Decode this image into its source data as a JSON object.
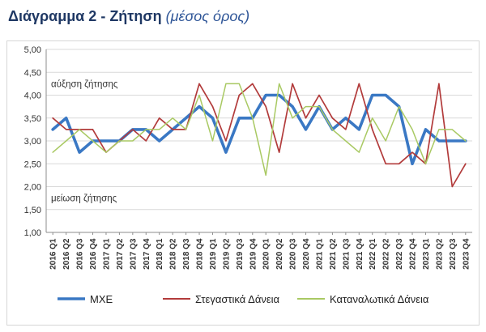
{
  "title": "Διάγραμμα 2 - Ζήτηση",
  "title_note": "(μέσος όρος)",
  "chart_data": {
    "type": "line",
    "title": "Διάγραμμα 2 - Ζήτηση (μέσος όρος)",
    "xlabel": "",
    "ylabel": "",
    "ylim": [
      1.0,
      5.0
    ],
    "yticks": [
      "1,00",
      "1,50",
      "2,00",
      "2,50",
      "3,00",
      "3,50",
      "4,00",
      "4,50",
      "5,00"
    ],
    "grid": true,
    "legend_position": "bottom",
    "categories": [
      "2016 Q1",
      "2016 Q2",
      "2016 Q3",
      "2016 Q4",
      "2017 Q1",
      "2017 Q2",
      "2017 Q3",
      "2017 Q4",
      "2018 Q1",
      "2018 Q2",
      "2018 Q3",
      "2018 Q4",
      "2019 Q1",
      "2019 Q2",
      "2019 Q3",
      "2019 Q4",
      "2020 Q1",
      "2020 Q2",
      "2020 Q3",
      "2020 Q4",
      "2021 Q1",
      "2021 Q2",
      "2021 Q3",
      "2021 Q4",
      "2022 Q1",
      "2022 Q2",
      "2022 Q3",
      "2022 Q4",
      "2023 Q1",
      "2023 Q2",
      "2023 Q3",
      "2023 Q4"
    ],
    "series": [
      {
        "name": "ΜΧΕ",
        "color": "#3a78c4",
        "width": 3.6,
        "values": [
          3.25,
          3.5,
          2.75,
          3.0,
          3.0,
          3.0,
          3.25,
          3.25,
          3.0,
          3.25,
          3.5,
          3.75,
          3.5,
          2.75,
          3.5,
          3.5,
          4.0,
          4.0,
          3.75,
          3.25,
          3.75,
          3.25,
          3.5,
          3.25,
          4.0,
          4.0,
          3.75,
          2.5,
          3.25,
          3.0,
          3.0,
          3.0
        ]
      },
      {
        "name": "Στεγαστικά Δάνεια",
        "color": "#b23b3b",
        "width": 1.7,
        "values": [
          3.5,
          3.25,
          3.25,
          3.25,
          2.75,
          3.0,
          3.25,
          3.0,
          3.5,
          3.25,
          3.25,
          4.25,
          3.75,
          3.0,
          4.0,
          4.25,
          3.75,
          2.75,
          4.25,
          3.5,
          4.0,
          3.5,
          3.25,
          4.25,
          3.25,
          2.5,
          2.5,
          2.75,
          2.5,
          4.25,
          2.0,
          2.5
        ]
      },
      {
        "name": "Καταναλωτικά Δάνεια",
        "color": "#a9c963",
        "width": 1.5,
        "values": [
          2.75,
          3.0,
          3.25,
          3.0,
          2.75,
          3.0,
          3.0,
          3.25,
          3.25,
          3.5,
          3.25,
          4.0,
          3.0,
          4.25,
          4.25,
          3.5,
          2.25,
          4.25,
          3.5,
          3.75,
          3.75,
          3.25,
          3.0,
          2.75,
          3.5,
          3.0,
          3.75,
          3.25,
          2.5,
          3.25,
          3.25,
          3.0
        ]
      }
    ],
    "annotations": [
      {
        "text": "αύξηση ζήτησης",
        "y": 4.25
      },
      {
        "text": "μείωση ζήτησης",
        "y": 1.75
      }
    ]
  }
}
